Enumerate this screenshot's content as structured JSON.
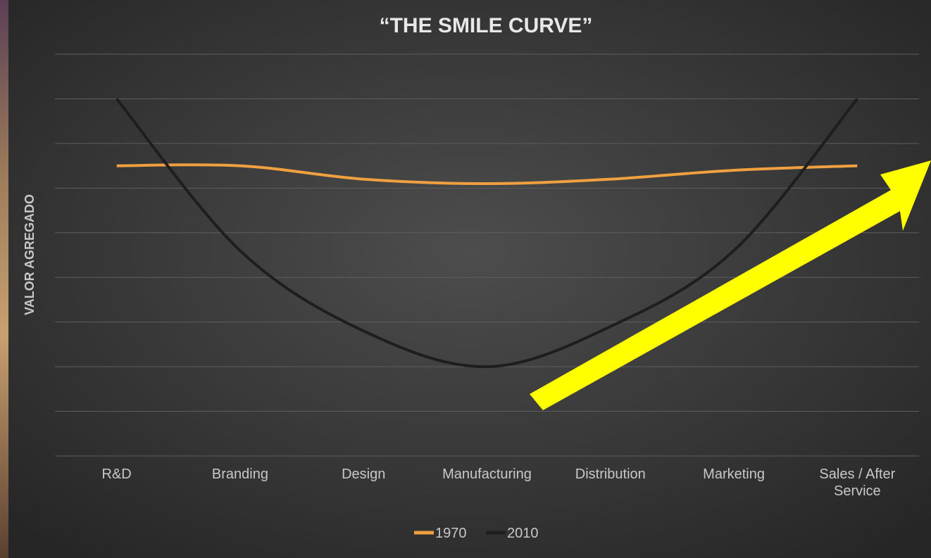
{
  "chart_data": {
    "type": "line",
    "title": "“THE SMILE CURVE”",
    "y_label": "VALOR AGREGADO",
    "categories": [
      "R&D",
      "Branding",
      "Design",
      "Manufacturing",
      "Distribution",
      "Marketing",
      "Sales / After Service"
    ],
    "series": [
      {
        "name": "1970",
        "color": "#f0a040",
        "values": [
          6.5,
          6.5,
          6.2,
          6.1,
          6.2,
          6.4,
          6.5
        ]
      },
      {
        "name": "2010",
        "color": "#1e1e1e",
        "values": [
          8.0,
          4.6,
          2.8,
          2.0,
          2.9,
          4.6,
          8.0
        ]
      }
    ],
    "ylim": [
      0,
      9
    ],
    "yticks": [
      0,
      1,
      2,
      3,
      4,
      5,
      6,
      7,
      8,
      9
    ],
    "grid": true,
    "legend": "bottom"
  }
}
